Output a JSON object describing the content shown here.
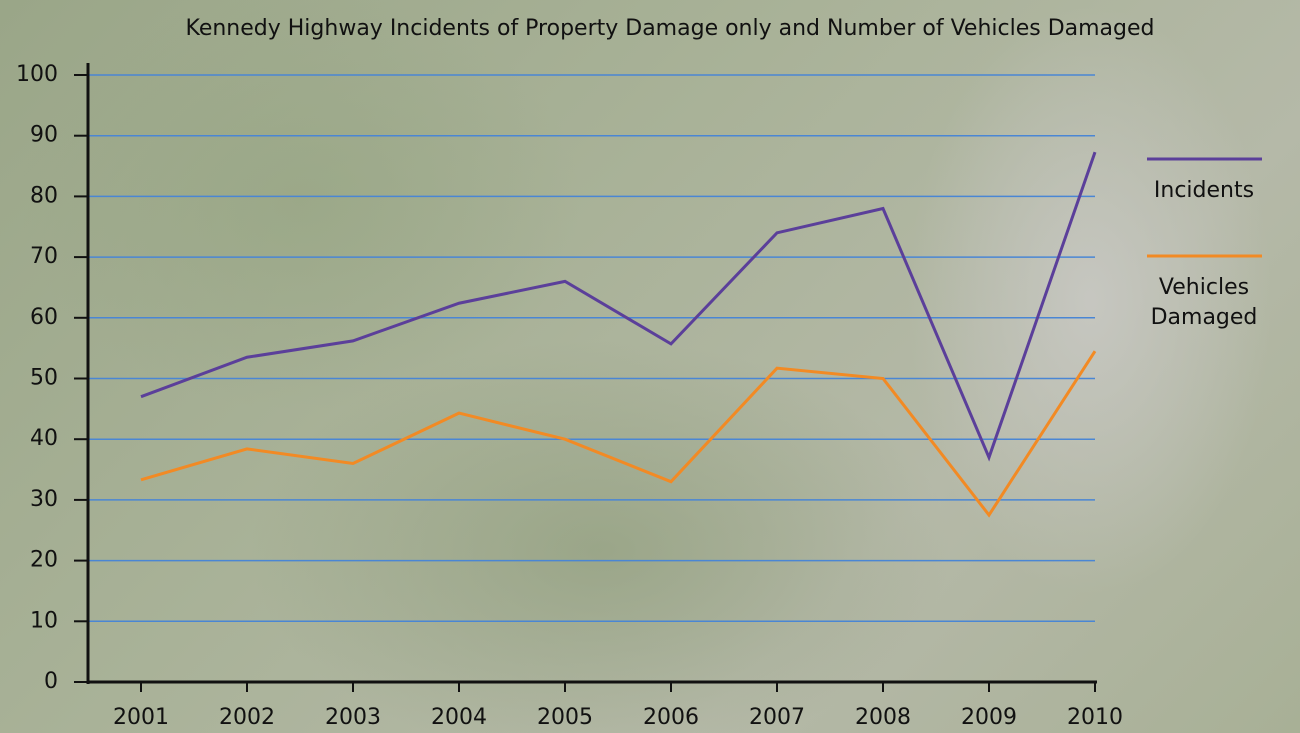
{
  "chart_data": {
    "type": "line",
    "title": "Kennedy Highway Incidents of Property Damage only and Number of Vehicles Damaged",
    "categories": [
      "2001",
      "2002",
      "2003",
      "2004",
      "2005",
      "2006",
      "2007",
      "2008",
      "2009",
      "2010"
    ],
    "series": [
      {
        "name": "Incidents",
        "color": "#5b3f9a",
        "values": [
          47,
          53.5,
          56.2,
          62.4,
          66,
          55.7,
          74,
          78,
          37,
          87.3
        ]
      },
      {
        "name": "Vehicles Damaged",
        "color": "#f28a24",
        "values": [
          33.3,
          38.4,
          36,
          44.3,
          40,
          33,
          51.7,
          50,
          27.5,
          54.5
        ]
      }
    ],
    "ylim": [
      0,
      100
    ],
    "yticks": [
      0,
      10,
      20,
      30,
      40,
      50,
      60,
      70,
      80,
      90,
      100
    ],
    "grid": true,
    "grid_color": "#4a86d4",
    "legend": "right"
  }
}
